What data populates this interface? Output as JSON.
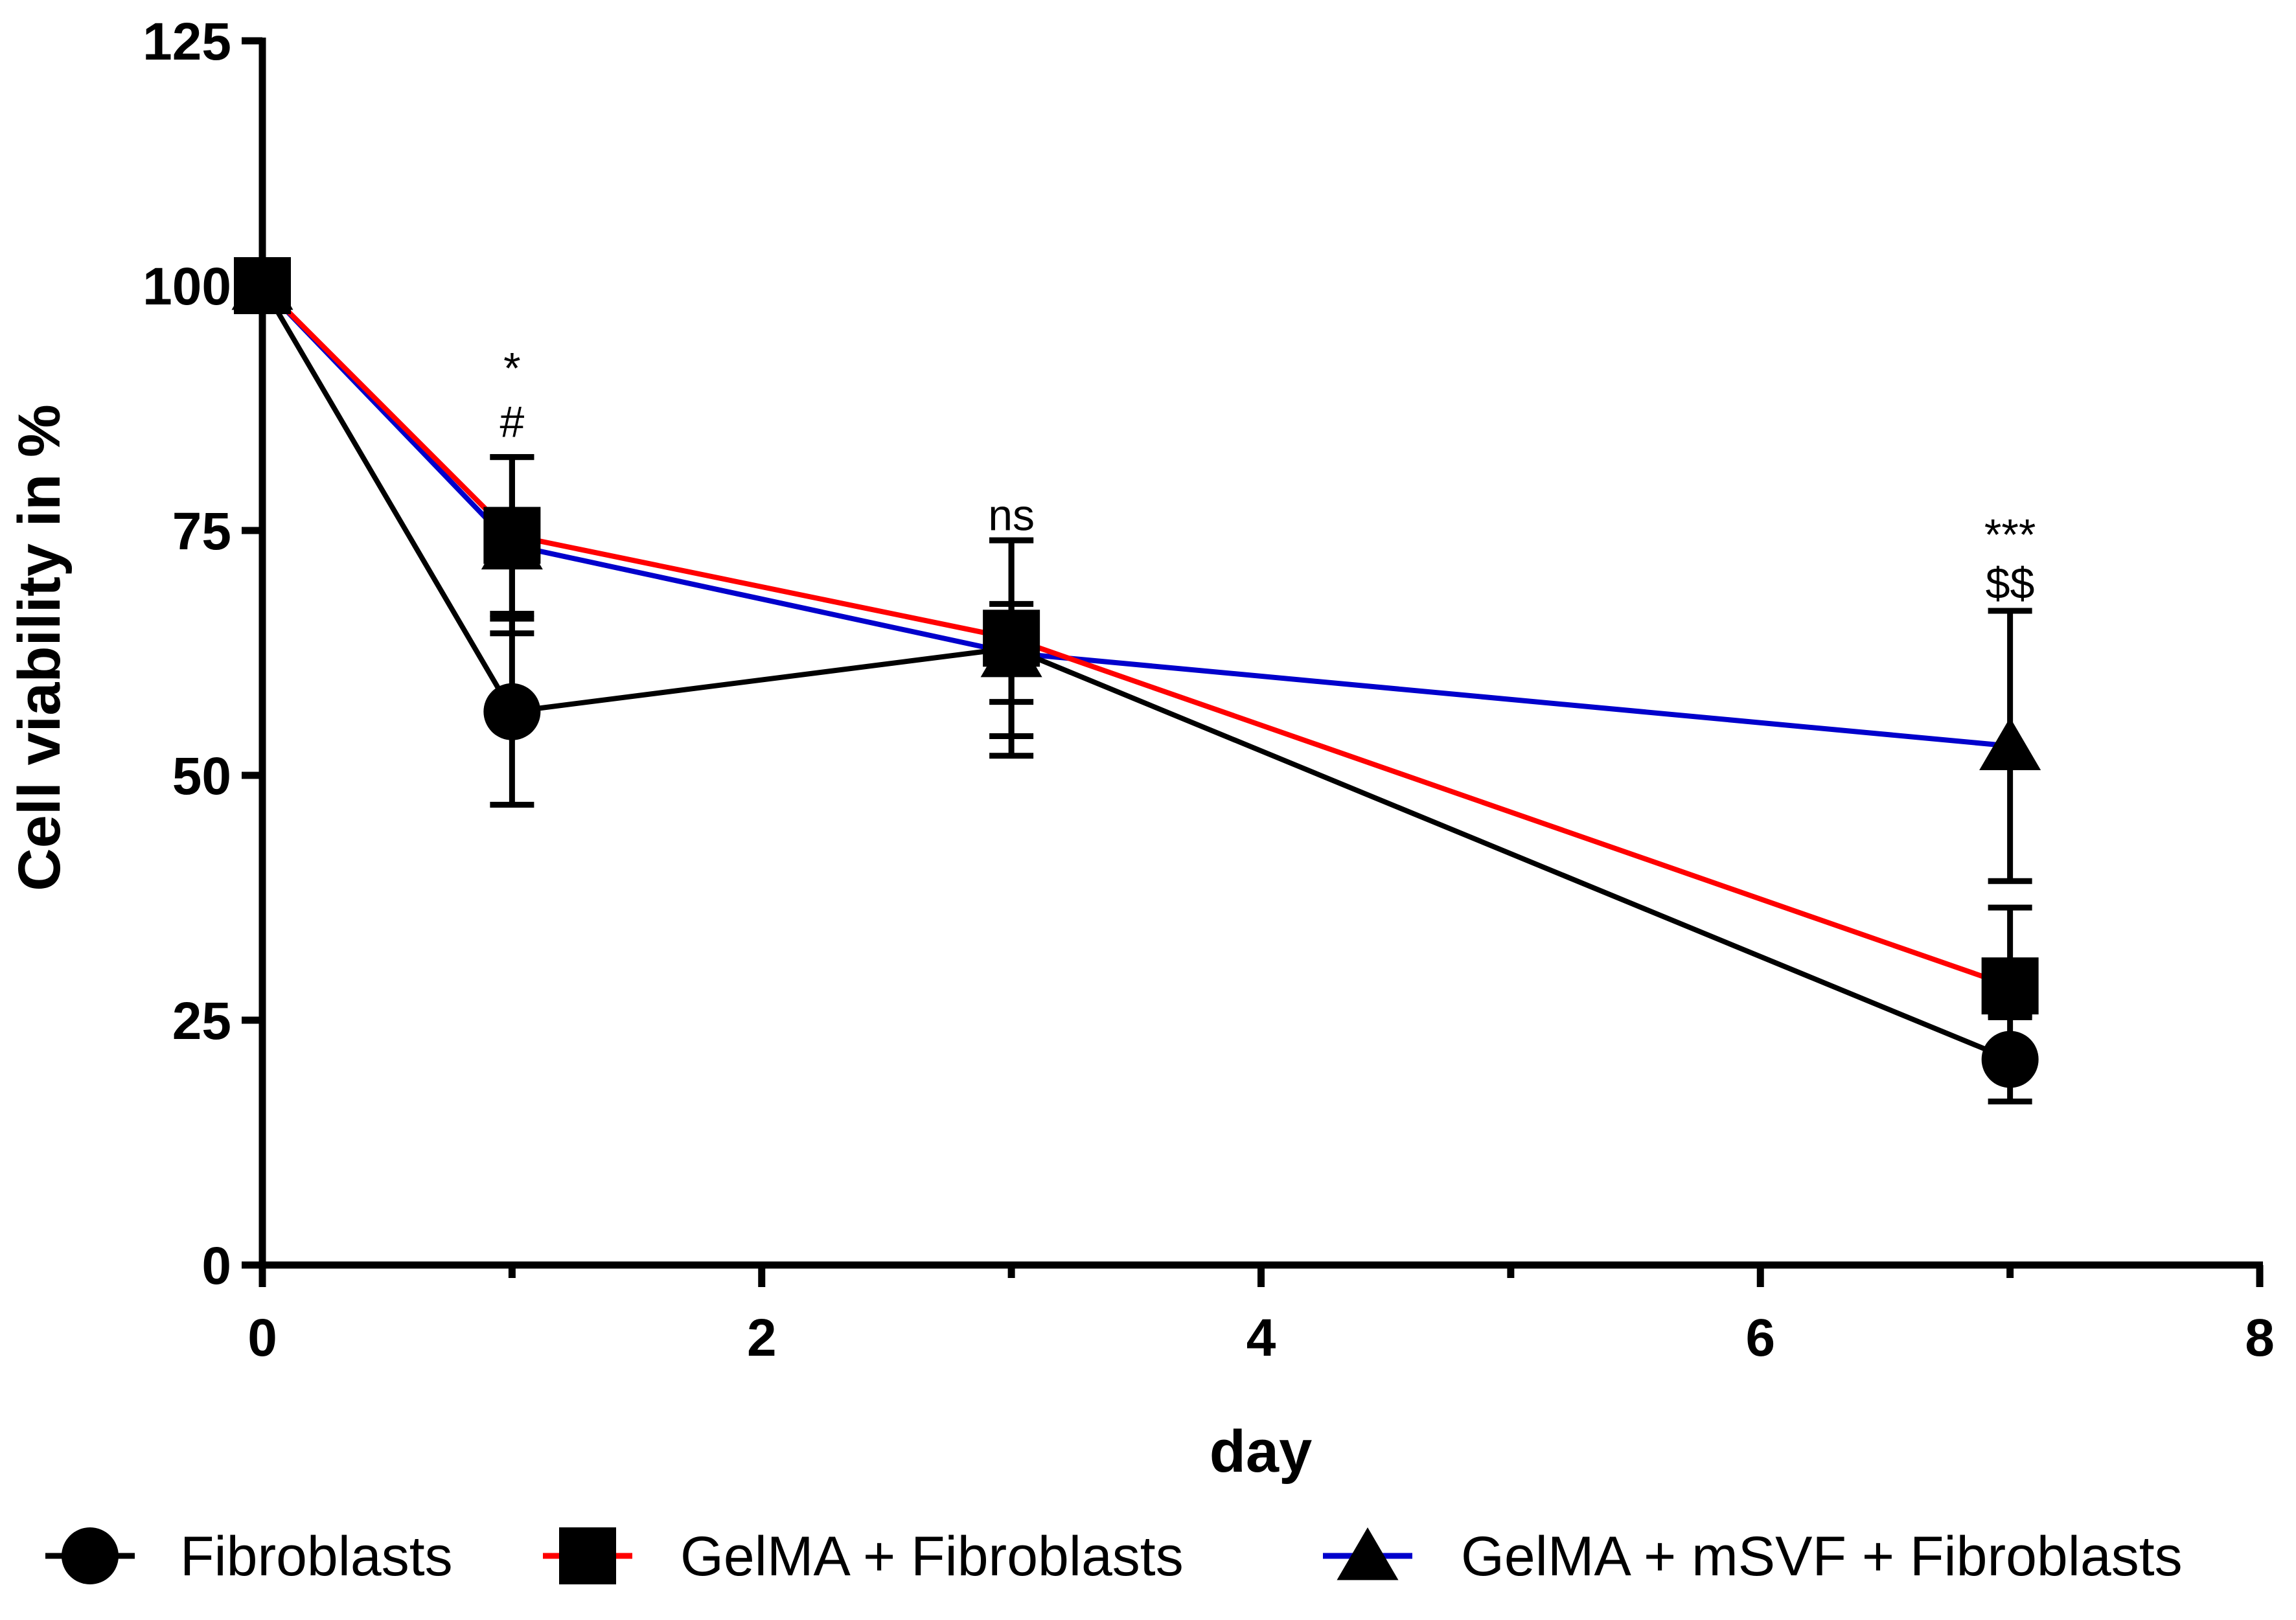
{
  "chart_data": {
    "type": "line",
    "title": "",
    "xlabel": "day",
    "ylabel": "Cell viability in %",
    "xlim": [
      0,
      8
    ],
    "ylim": [
      0,
      125
    ],
    "x_ticks": [
      0,
      2,
      4,
      6,
      8
    ],
    "x_minor_ticks": [
      1,
      3,
      5,
      7
    ],
    "y_ticks": [
      0,
      25,
      50,
      75,
      100,
      125
    ],
    "grid": false,
    "legend_position": "bottom",
    "series": [
      {
        "name": "Fibroblasts",
        "color": "#000000",
        "marker": "circle",
        "points": [
          {
            "x": 0,
            "y": 100,
            "err_low": 0,
            "err_high": 0
          },
          {
            "x": 1,
            "y": 56.5,
            "err_low": 9.5,
            "err_high": 9.5
          },
          {
            "x": 3,
            "y": 63,
            "err_low": 11,
            "err_high": 11
          },
          {
            "x": 7,
            "y": 21,
            "err_low": 4.3,
            "err_high": 4.3
          }
        ]
      },
      {
        "name": "GelMA + Fibroblasts",
        "color": "#ff0000",
        "marker": "square",
        "points": [
          {
            "x": 0,
            "y": 100,
            "err_low": 0,
            "err_high": 0
          },
          {
            "x": 1,
            "y": 74.5,
            "err_low": 8,
            "err_high": 8
          },
          {
            "x": 3,
            "y": 64,
            "err_low": 10,
            "err_high": 10
          },
          {
            "x": 7,
            "y": 28.5,
            "err_low": 3,
            "err_high": 8
          }
        ]
      },
      {
        "name": "GelMA + mSVF + Fibroblasts",
        "color": "#0000cc",
        "marker": "triangle",
        "points": [
          {
            "x": 0,
            "y": 100,
            "err_low": 0,
            "err_high": 0
          },
          {
            "x": 1,
            "y": 73.5,
            "err_low": 9,
            "err_high": 9
          },
          {
            "x": 3,
            "y": 62.5,
            "err_low": 5,
            "err_high": 5
          },
          {
            "x": 7,
            "y": 53,
            "err_low": 13.8,
            "err_high": 13.8
          }
        ]
      }
    ],
    "annotations": [
      {
        "x": 1,
        "y": 91.5,
        "text": "*"
      },
      {
        "x": 1,
        "y": 86,
        "text": "#"
      },
      {
        "x": 3,
        "y": 76.5,
        "text": "ns"
      },
      {
        "x": 7,
        "y": 74.5,
        "text": "***"
      },
      {
        "x": 7,
        "y": 69.5,
        "text": "$$"
      }
    ]
  }
}
